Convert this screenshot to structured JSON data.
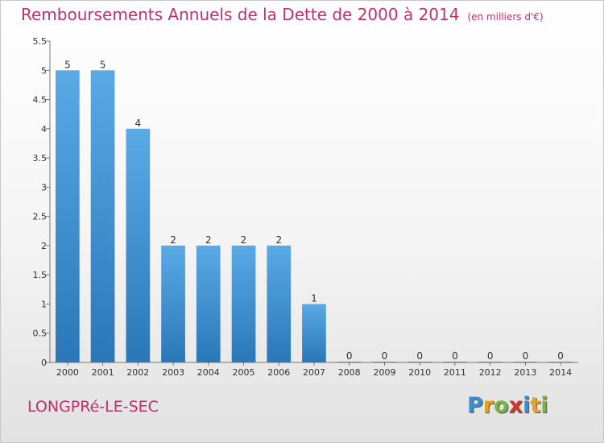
{
  "title": "Remboursements Annuels de la Dette de 2000 à 2014",
  "unit": "(en milliers d'€)",
  "commune": "LONGPRé-LE-SEC",
  "logo": {
    "letters": [
      "P",
      "r",
      "o",
      "x",
      "i",
      "t",
      "i"
    ],
    "colors": [
      "#3a8fd0",
      "#e8a21c",
      "#7cb342",
      "#d8342e",
      "#3a8fd0",
      "#e8a21c",
      "#7cb342"
    ]
  },
  "chart_data": {
    "type": "bar",
    "categories": [
      "2000",
      "2001",
      "2002",
      "2003",
      "2004",
      "2005",
      "2006",
      "2007",
      "2008",
      "2009",
      "2010",
      "2011",
      "2012",
      "2013",
      "2014"
    ],
    "values": [
      5,
      5,
      4,
      2,
      2,
      2,
      2,
      1,
      0,
      0,
      0,
      0,
      0,
      0,
      0
    ],
    "data_labels": [
      "5",
      "5",
      "4",
      "2",
      "2",
      "2",
      "2",
      "1",
      "0",
      "0",
      "0",
      "0",
      "0",
      "0",
      "0"
    ],
    "yticks": [
      0,
      0.5,
      1,
      1.5,
      2,
      2.5,
      3,
      3.5,
      4,
      4.5,
      5,
      5.5
    ],
    "ytick_labels": [
      "0",
      "0.5",
      "1",
      "1.5",
      "2",
      "2.5",
      "3",
      "3.5",
      "4",
      "4.5",
      "5",
      "5.5"
    ],
    "ylim": [
      0,
      5.5
    ],
    "grid": false,
    "bar_color_light": "#5aaae6",
    "bar_color_dark": "#2a77b8",
    "text_color": "#333333"
  }
}
